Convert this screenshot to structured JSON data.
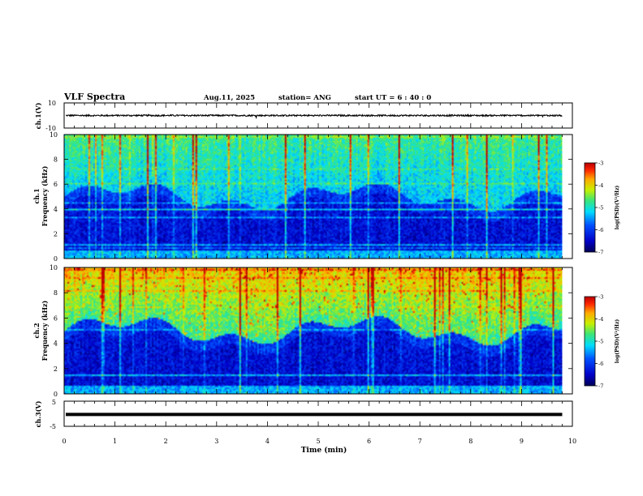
{
  "header": {
    "title": "VLF Spectra",
    "date": "Aug.11, 2025",
    "station": "station= ANG",
    "start": "start  UT =   6 : 40 : 0"
  },
  "chart_data": [
    {
      "type": "line",
      "name": "ch1-waveform",
      "ylabel": "ch.1(V)",
      "ylim": [
        -10,
        10
      ],
      "yticks": [
        "10",
        "-10"
      ],
      "xlim": [
        0,
        10
      ],
      "baseline": 0,
      "amplitude": 1.2
    },
    {
      "type": "heatmap",
      "name": "ch1-spectrogram",
      "title": "ch.1",
      "ylabel": "Frequency (kHz)",
      "ylim": [
        0,
        10
      ],
      "yticks": [
        "0",
        "2",
        "4",
        "6",
        "8",
        "10"
      ],
      "xlim": [
        0,
        10
      ],
      "data_end_min": 9.8,
      "colorbar": {
        "label": "log(PSD)(V²/Hz)",
        "range": [
          -7,
          -3
        ],
        "ticks": [
          "-3",
          "-4",
          "-5",
          "-6",
          "-7"
        ]
      }
    },
    {
      "type": "heatmap",
      "name": "ch2-spectrogram",
      "title": "ch.2",
      "ylabel": "Frequency (kHz)",
      "ylim": [
        0,
        10
      ],
      "yticks": [
        "0",
        "2",
        "4",
        "6",
        "8",
        "10"
      ],
      "xlim": [
        0,
        10
      ],
      "data_end_min": 9.8,
      "colorbar": {
        "label": "log(PSD)(V²/Hz)",
        "range": [
          -7,
          -3
        ],
        "ticks": [
          "-3",
          "-4",
          "-5",
          "-6",
          "-7"
        ]
      }
    },
    {
      "type": "line",
      "name": "ch3-waveform",
      "ylabel": "ch.3(V)",
      "ylim": [
        -5,
        5
      ],
      "yticks": [
        "5",
        "-5"
      ],
      "xlim": [
        0,
        10
      ],
      "baseline": -0.3,
      "amplitude": 0.15
    }
  ],
  "xaxis": {
    "label": "Time  (min)",
    "ticks": [
      "0",
      "1",
      "2",
      "3",
      "4",
      "5",
      "6",
      "7",
      "8",
      "9",
      "10"
    ]
  }
}
